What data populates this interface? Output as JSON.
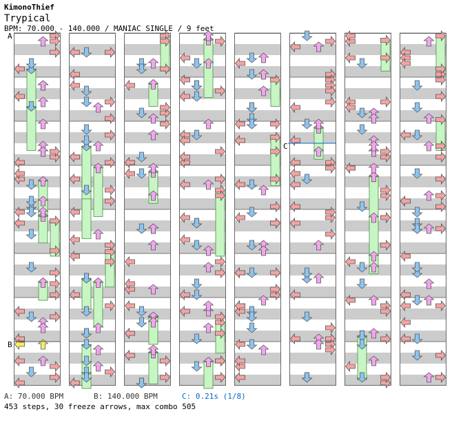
{
  "header": {
    "author": "KimonoThief",
    "title": "Trypical",
    "info": "BPM: 70.000 - 140.000 / MANIAC SINGLE / 9 feet"
  },
  "footer": {
    "bpm_a": "A: 70.000 BPM",
    "bpm_b": "B: 140.000 BPM",
    "stop_c": "C: 0.21s (1/8)",
    "stats": "453 steps, 30 freeze arrows, max combo 505"
  },
  "colors": {
    "left": "#f4a3a3",
    "down": "#8cc4f0",
    "up": "#f2a6ee",
    "right": "#f4a3a3",
    "freeze": "#c8f5c4",
    "special": "#f4f060",
    "stripe": "#cccccc"
  },
  "chart_data": {
    "type": "step-chart",
    "columns": 8,
    "measures_per_column": 8,
    "lanes": [
      "left",
      "down",
      "up",
      "right"
    ],
    "markers": [
      {
        "label": "A",
        "column": 0,
        "measure": 0
      },
      {
        "label": "B",
        "column": 0,
        "measure": 7
      },
      {
        "label": "C",
        "column": 5,
        "measure": 2.5
      }
    ],
    "freezes": [
      [
        1,
        0,
        0.75,
        1.8
      ],
      [
        1,
        0,
        1.6,
        2.6
      ],
      [
        1,
        1,
        3.3,
        4.6
      ],
      [
        2,
        1,
        3.0,
        4.1
      ],
      [
        3,
        3,
        3.5,
        5.0
      ],
      [
        3,
        3,
        6.5,
        7.2
      ],
      [
        2,
        1,
        5.6,
        6.6
      ],
      [
        2,
        0,
        5.6,
        6.0
      ],
      [
        2,
        2,
        1.1,
        1.6
      ],
      [
        3,
        0,
        4.2,
        5.0
      ],
      [
        2,
        2,
        6.4,
        7.0
      ],
      [
        3,
        2,
        0.0,
        0.8
      ],
      [
        1,
        1,
        2.5,
        3.7
      ],
      [
        2,
        2,
        3.1,
        3.8
      ],
      [
        2,
        0,
        3.3,
        4.4
      ],
      [
        2,
        3,
        0.1,
        1.4
      ],
      [
        2,
        0,
        4.1,
        4.7
      ],
      [
        2,
        3,
        7.4,
        8.0
      ],
      [
        3,
        1,
        4.9,
        5.7
      ],
      [
        3,
        4,
        1.0,
        1.6
      ],
      [
        3,
        4,
        2.3,
        3.4
      ],
      [
        1,
        1,
        5.5,
        6.2
      ],
      [
        1,
        1,
        7.0,
        8.0
      ],
      [
        2,
        2,
        7.2,
        7.9
      ],
      [
        2,
        5,
        2.1,
        2.8
      ],
      [
        3,
        6,
        0.1,
        0.8
      ],
      [
        2,
        6,
        3.2,
        5.4
      ],
      [
        1,
        6,
        6.8,
        7.8
      ],
      [
        3,
        7,
        0.0,
        0.8
      ],
      [
        3,
        7,
        1.9,
        2.6
      ]
    ]
  }
}
